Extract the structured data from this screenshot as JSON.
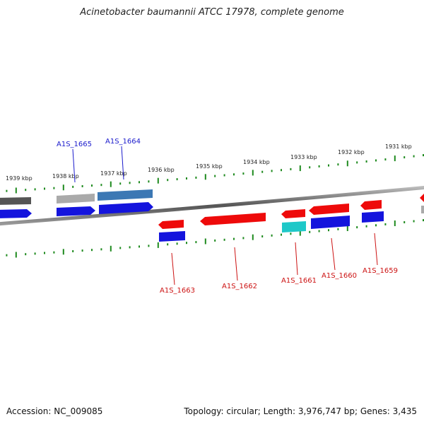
{
  "title": "Acinetobacter baumannii ATCC 17978, complete genome",
  "footer": {
    "accession": "Accession: NC_009085",
    "summary": "Topology: circular; Length: 3,976,747 bp; Genes: 3,435"
  },
  "colors": {
    "backbone": "#777777",
    "tick": "#1e8a1e",
    "label_forward": "#1a1acc",
    "label_reverse": "#cc1111",
    "red_gene": "#ee0a0a",
    "blue_gene": "#1414dd",
    "steel_gene": "#3c78b4",
    "cyan_gene": "#1ec8c8",
    "gray_gene": "#aaaaaa",
    "dark_gene": "#555555"
  },
  "scale_labels": [
    "1939 kbp",
    "1938 kbp",
    "1937 kbp",
    "1936 kbp",
    "1935 kbp",
    "1934 kbp",
    "1933 kbp",
    "1932 kbp",
    "1931 kbp"
  ],
  "gene_labels": {
    "forward": [
      "A1S_1665",
      "A1S_1664"
    ],
    "reverse": [
      "A1S_1663",
      "A1S_1662",
      "A1S_1661",
      "A1S_1660",
      "A1S_1659"
    ]
  }
}
